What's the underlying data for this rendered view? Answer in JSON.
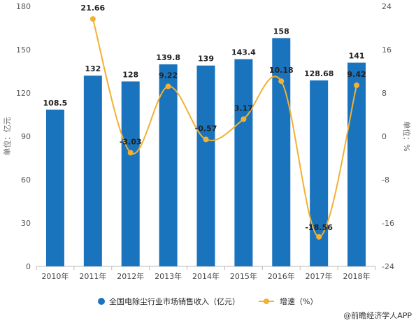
{
  "chart_data": {
    "type": "bar",
    "categories": [
      "2010年",
      "2011年",
      "2012年",
      "2013年",
      "2014年",
      "2015年",
      "2016年",
      "2017年",
      "2018年"
    ],
    "series": [
      {
        "name": "全国电除尘行业市场销售收入（亿元）",
        "type": "bar",
        "axis": "left",
        "color": "#1a73bd",
        "values": [
          108.5,
          132,
          128,
          139.8,
          139,
          143.4,
          158,
          128.68,
          141
        ],
        "labels": [
          "108.5",
          "132",
          "128",
          "139.8",
          "139",
          "143.4",
          "158",
          "128.68",
          "141"
        ]
      },
      {
        "name": "增速（%）",
        "type": "line",
        "axis": "right",
        "color": "#f2b132",
        "values": [
          null,
          21.66,
          -3.03,
          9.22,
          -0.57,
          3.17,
          10.18,
          -18.56,
          9.42
        ],
        "labels": [
          "",
          "21.66",
          "-3.03",
          "9.22",
          "-0.57",
          "3.17",
          "10.18",
          "-18.56",
          "9.42"
        ]
      }
    ],
    "y_left": {
      "label": "单位：亿元",
      "min": 0,
      "max": 180,
      "ticks": [
        "0",
        "30",
        "60",
        "90",
        "120",
        "150",
        "180"
      ]
    },
    "y_right": {
      "label": "单位：%",
      "min": -24,
      "max": 24,
      "ticks": [
        "-24",
        "-16",
        "-8",
        "0",
        "8",
        "16",
        "24"
      ]
    },
    "grid": false,
    "legend_position": "bottom-center"
  },
  "source": "@前瞻经济学人APP"
}
